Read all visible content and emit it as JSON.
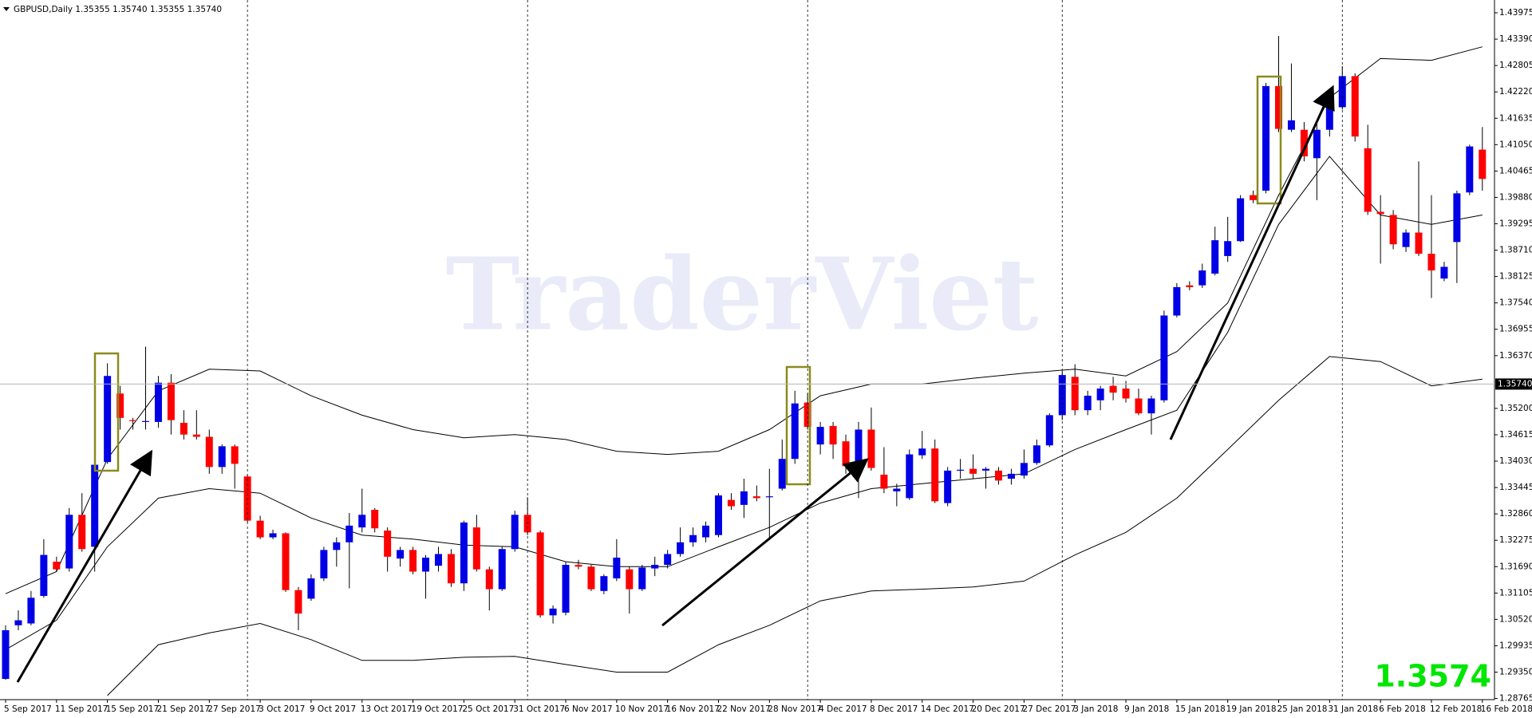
{
  "chart_data": {
    "type": "candlestick",
    "title": "GBPUSD,Daily  1.35355 1.35740 1.35355 1.35740",
    "watermark": "TraderViet",
    "categories": [
      "5 Sep 2017",
      null,
      null,
      null,
      "11 Sep 2017",
      null,
      null,
      null,
      "15 Sep 2017",
      null,
      null,
      null,
      "21 Sep 2017",
      null,
      null,
      null,
      "27 Sep 2017",
      null,
      null,
      null,
      "3 Oct 2017",
      null,
      null,
      null,
      "9 Oct 2017",
      null,
      null,
      null,
      "13 Oct 2017",
      null,
      null,
      null,
      "19 Oct 2017",
      null,
      null,
      null,
      "25 Oct 2017",
      null,
      null,
      null,
      "31 Oct 2017",
      null,
      null,
      null,
      "6 Nov 2017",
      null,
      null,
      null,
      "10 Nov 2017",
      null,
      null,
      null,
      "16 Nov 2017",
      null,
      null,
      null,
      "22 Nov 2017",
      null,
      null,
      null,
      "28 Nov 2017",
      null,
      null,
      null,
      "4 Dec 2017",
      null,
      null,
      null,
      "8 Dec 2017",
      null,
      null,
      null,
      "14 Dec 2017",
      null,
      null,
      null,
      "20 Dec 2017",
      null,
      null,
      null,
      "27 Dec 2017",
      null,
      null,
      null,
      "3 Jan 2018",
      null,
      null,
      null,
      "9 Jan 2018",
      null,
      null,
      null,
      "15 Jan 2018",
      null,
      null,
      null,
      "19 Jan 2018",
      null,
      null,
      null,
      "25 Jan 2018",
      null,
      null,
      null,
      "31 Jan 2018",
      null,
      null,
      null,
      "6 Feb 2018",
      null,
      null,
      null,
      "12 Feb 2018",
      null,
      null,
      null,
      "16 Feb 2018"
    ],
    "open": [
      1.292,
      1.3039,
      1.3043,
      1.3104,
      1.318,
      1.3165,
      1.3284,
      1.3213,
      1.3401,
      1.3553,
      1.3494,
      1.349,
      1.349,
      1.3577,
      1.3488,
      1.3462,
      1.3457,
      1.339,
      1.3436,
      1.3369,
      1.3271,
      1.3234,
      1.3243,
      1.3117,
      1.3098,
      1.3143,
      1.3206,
      1.3223,
      1.3256,
      1.3295,
      1.3249,
      1.3187,
      1.3206,
      1.3158,
      1.3171,
      1.3197,
      1.3132,
      1.3256,
      1.3163,
      1.3119,
      1.3208,
      1.3284,
      1.3245,
      1.3061,
      1.3067,
      1.3173,
      1.3169,
      1.3115,
      1.3143,
      1.3163,
      1.3119,
      1.3165,
      1.3173,
      1.3197,
      1.3223,
      1.3234,
      1.3239,
      1.3317,
      1.3306,
      1.3325,
      1.3323,
      1.3342,
      1.3408,
      1.3533,
      1.344,
      1.3481,
      1.3447,
      1.3397,
      1.3473,
      1.3373,
      1.3336,
      1.3321,
      1.3416,
      1.3431,
      1.331,
      1.3382,
      1.3386,
      1.3382,
      1.3382,
      1.3364,
      1.3371,
      1.3399,
      1.3438,
      1.3505,
      1.359,
      1.3516,
      1.3538,
      1.357,
      1.3564,
      1.3542,
      1.3509,
      1.3538,
      1.3726,
      1.3793,
      1.3793,
      1.3819,
      1.3858,
      1.3891,
      1.3993,
      1.4003,
      1.4235,
      1.4138,
      1.4138,
      1.4075,
      1.4138,
      1.4188,
      1.4257,
      1.4097,
      1.3956,
      1.3949,
      1.3878,
      1.391,
      1.3863,
      1.3808,
      1.3889,
      1.3999,
      1.4094
    ],
    "high": [
      1.3039,
      1.3072,
      1.3115,
      1.323,
      1.3191,
      1.3299,
      1.3332,
      1.3408,
      1.362,
      1.357,
      1.3499,
      1.3657,
      1.3592,
      1.3596,
      1.3516,
      1.3516,
      1.3473,
      1.344,
      1.344,
      1.3373,
      1.3282,
      1.3251,
      1.3245,
      1.3124,
      1.3152,
      1.3213,
      1.3234,
      1.3288,
      1.3342,
      1.3299,
      1.3256,
      1.3213,
      1.3213,
      1.3195,
      1.3213,
      1.3208,
      1.3271,
      1.3284,
      1.3169,
      1.3213,
      1.3293,
      1.3323,
      1.3249,
      1.3083,
      1.318,
      1.3184,
      1.3173,
      1.3152,
      1.323,
      1.3169,
      1.3173,
      1.3191,
      1.3206,
      1.3256,
      1.3256,
      1.3269,
      1.3332,
      1.3332,
      1.3364,
      1.3349,
      1.3386,
      1.3451,
      1.3559,
      1.3553,
      1.349,
      1.349,
      1.3462,
      1.349,
      1.3522,
      1.3434,
      1.3353,
      1.3429,
      1.347,
      1.3451,
      1.339,
      1.3408,
      1.3418,
      1.339,
      1.339,
      1.3386,
      1.3429,
      1.3451,
      1.3509,
      1.3603,
      1.3618,
      1.3559,
      1.357,
      1.359,
      1.3581,
      1.3564,
      1.3548,
      1.3737,
      1.3798,
      1.3802,
      1.3841,
      1.3923,
      1.3945,
      1.3993,
      1.4003,
      1.4242,
      1.4346,
      1.4285,
      1.4155,
      1.4155,
      1.4227,
      1.4279,
      1.4263,
      1.4149,
      1.3993,
      1.396,
      1.3917,
      1.4068,
      1.3993,
      1.3845,
      1.4003,
      1.4105,
      1.4144
    ],
    "low": [
      1.2918,
      1.3028,
      1.3039,
      1.31,
      1.3158,
      1.3158,
      1.3202,
      1.3158,
      1.3397,
      1.3473,
      1.3473,
      1.3473,
      1.3477,
      1.3462,
      1.3451,
      1.3451,
      1.3375,
      1.3375,
      1.3342,
      1.3267,
      1.323,
      1.323,
      1.3113,
      1.3028,
      1.3093,
      1.3137,
      1.3169,
      1.3121,
      1.3245,
      1.3245,
      1.3158,
      1.3169,
      1.3152,
      1.3098,
      1.3158,
      1.3124,
      1.3115,
      1.3158,
      1.3072,
      1.3115,
      1.3202,
      1.3239,
      1.3056,
      1.3043,
      1.3061,
      1.3163,
      1.3115,
      1.3108,
      1.3137,
      1.3065,
      1.3115,
      1.3148,
      1.3165,
      1.3191,
      1.3213,
      1.3223,
      1.3234,
      1.3295,
      1.3277,
      1.3314,
      1.3228,
      1.3338,
      1.3397,
      1.3473,
      1.3418,
      1.3408,
      1.3375,
      1.3321,
      1.3382,
      1.3332,
      1.3303,
      1.3317,
      1.3408,
      1.331,
      1.3303,
      1.3364,
      1.3364,
      1.3342,
      1.3351,
      1.3351,
      1.3364,
      1.3395,
      1.3434,
      1.3494,
      1.3505,
      1.3505,
      1.3516,
      1.3538,
      1.3533,
      1.3505,
      1.3462,
      1.3533,
      1.3722,
      1.3782,
      1.3787,
      1.3815,
      1.3845,
      1.3889,
      1.3975,
      1.3997,
      1.4133,
      1.4133,
      1.4068,
      1.3982,
      1.4123,
      1.4183,
      1.4112,
      1.3949,
      1.3841,
      1.3873,
      1.3867,
      1.3858,
      1.3765,
      1.3802,
      1.3798,
      1.3993,
      1.4003
    ],
    "close": [
      1.3028,
      1.305,
      1.31,
      1.3195,
      1.3163,
      1.3284,
      1.3208,
      1.3395,
      1.3592,
      1.3499,
      1.3492,
      1.3492,
      1.3577,
      1.3494,
      1.3462,
      1.3457,
      1.339,
      1.3436,
      1.3397,
      1.3271,
      1.3234,
      1.3243,
      1.3117,
      1.3065,
      1.3143,
      1.3206,
      1.3223,
      1.326,
      1.3284,
      1.3254,
      1.3191,
      1.3206,
      1.3158,
      1.3189,
      1.3197,
      1.3132,
      1.3267,
      1.3163,
      1.3119,
      1.3208,
      1.3284,
      1.3245,
      1.3061,
      1.3076,
      1.3173,
      1.3169,
      1.3119,
      1.3148,
      1.3189,
      1.3119,
      1.3167,
      1.3173,
      1.3197,
      1.3223,
      1.3239,
      1.326,
      1.3327,
      1.3303,
      1.3336,
      1.3321,
      1.3325,
      1.3408,
      1.3531,
      1.3479,
      1.3479,
      1.344,
      1.3392,
      1.3473,
      1.3388,
      1.3342,
      1.3342,
      1.3418,
      1.3431,
      1.3314,
      1.3382,
      1.3384,
      1.3375,
      1.3386,
      1.336,
      1.3375,
      1.3399,
      1.3438,
      1.3505,
      1.3594,
      1.3516,
      1.3548,
      1.3564,
      1.3555,
      1.3542,
      1.3509,
      1.3542,
      1.3726,
      1.3789,
      1.3789,
      1.3826,
      1.3893,
      1.3891,
      1.3986,
      1.3982,
      1.4235,
      1.414,
      1.4159,
      1.4079,
      1.4138,
      1.4188,
      1.4257,
      1.4123,
      1.3956,
      1.3951,
      1.3884,
      1.391,
      1.3863,
      1.3826,
      1.3834,
      1.3997,
      1.4101,
      1.4029
    ],
    "up_color": "#0000e6",
    "down_color": "#ff0000",
    "bands": {
      "color": "#000000",
      "x": [
        0,
        4,
        8,
        12,
        16,
        20,
        24,
        28,
        32,
        36,
        40,
        44,
        48,
        52,
        56,
        60,
        64,
        68,
        72,
        76,
        80,
        84,
        88,
        92,
        96,
        100,
        104,
        108,
        112,
        116
      ],
      "upper": [
        1.3109,
        1.3158,
        1.3408,
        1.3559,
        1.3607,
        1.3603,
        1.3548,
        1.3505,
        1.3473,
        1.3455,
        1.3462,
        1.3451,
        1.3425,
        1.3418,
        1.3425,
        1.3473,
        1.3548,
        1.3574,
        1.3574,
        1.3587,
        1.3598,
        1.3607,
        1.3592,
        1.3646,
        1.3754,
        1.3993,
        1.4209,
        1.4296,
        1.4292,
        1.4322
      ],
      "middle": [
        1.2985,
        1.305,
        1.3213,
        1.3321,
        1.3342,
        1.3332,
        1.3277,
        1.3239,
        1.323,
        1.3217,
        1.3213,
        1.318,
        1.3169,
        1.3169,
        1.3213,
        1.3256,
        1.331,
        1.3342,
        1.3353,
        1.3364,
        1.3375,
        1.3429,
        1.3473,
        1.3516,
        1.3689,
        1.3928,
        1.4079,
        1.3949,
        1.3928,
        1.3949
      ],
      "lower": [
        null,
        null,
        1.2883,
        1.2996,
        1.3022,
        1.3043,
        1.3007,
        1.2961,
        1.2961,
        1.2968,
        1.297,
        1.2952,
        1.2935,
        1.2935,
        1.2996,
        1.3039,
        1.3093,
        1.3115,
        1.3119,
        1.3124,
        1.3137,
        1.3195,
        1.3245,
        1.3321,
        1.3429,
        1.3538,
        1.3635,
        1.3624,
        1.357,
        1.3585
      ]
    },
    "ylim": [
      1.2874,
      1.4417
    ],
    "yticks": [
      1.43975,
      {
        "value": 1.4339,
        "label": "1.43390"
      },
      1.42805,
      {
        "value": 1.4222,
        "label": "1.42220"
      },
      1.41635,
      {
        "value": 1.4105,
        "label": "1.41050"
      },
      1.40465,
      {
        "value": 1.3988,
        "label": "1.39880"
      },
      1.39295,
      {
        "value": 1.3871,
        "label": "1.38710"
      },
      1.38125,
      {
        "value": 1.3754,
        "label": "1.37540"
      },
      1.36955,
      {
        "value": 1.3637,
        "label": "1.36370"
      },
      {
        "value": 1.352,
        "label": "1.35200"
      },
      1.34615,
      {
        "value": 1.3403,
        "label": "1.34030"
      },
      1.33445,
      {
        "value": 1.3286,
        "label": "1.32860"
      },
      1.32275,
      {
        "value": 1.3169,
        "label": "1.31690"
      },
      1.31105,
      {
        "value": 1.3052,
        "label": "1.30520"
      },
      1.29935,
      {
        "value": 1.2935,
        "label": "1.29350"
      },
      1.28765
    ],
    "current_price": {
      "value": 1.3574,
      "label": "1.35740"
    },
    "current_price_color": "#00e600",
    "grid": false
  }
}
